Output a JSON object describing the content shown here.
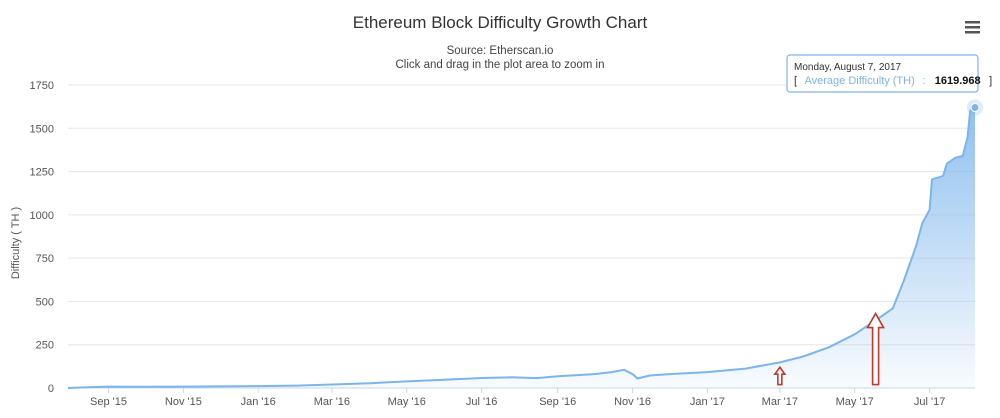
{
  "chart_data": {
    "type": "area",
    "title": "Ethereum Block Difficulty Growth Chart",
    "subtitle_lines": [
      "Source: Etherscan.io",
      "Click and drag in the plot area to zoom in"
    ],
    "ylabel": "Difficulty ( TH )",
    "xlabel": "",
    "ylim": [
      0,
      1750
    ],
    "xlim": [
      "2015-07-30",
      "2017-08-07"
    ],
    "grid": true,
    "legend": "none",
    "y_ticks": [
      "0",
      "250",
      "500",
      "750",
      "1000",
      "1250",
      "1500",
      "1750"
    ],
    "x_ticks": [
      {
        "date": "2015-09-01",
        "label": "Sep '15"
      },
      {
        "date": "2015-11-01",
        "label": "Nov '15"
      },
      {
        "date": "2016-01-01",
        "label": "Jan '16"
      },
      {
        "date": "2016-03-01",
        "label": "Mar '16"
      },
      {
        "date": "2016-05-01",
        "label": "May '16"
      },
      {
        "date": "2016-07-01",
        "label": "Jul '16"
      },
      {
        "date": "2016-09-01",
        "label": "Sep '16"
      },
      {
        "date": "2016-11-01",
        "label": "Nov '16"
      },
      {
        "date": "2017-01-01",
        "label": "Jan '17"
      },
      {
        "date": "2017-03-01",
        "label": "Mar '17"
      },
      {
        "date": "2017-05-01",
        "label": "May '17"
      },
      {
        "date": "2017-07-01",
        "label": "Jul '17"
      }
    ],
    "series": [
      {
        "name": "Average Difficulty (TH)",
        "color": "#7cb5ec",
        "points": [
          [
            "2015-07-30",
            0.1
          ],
          [
            "2015-08-15",
            4
          ],
          [
            "2015-09-01",
            8
          ],
          [
            "2015-10-01",
            7
          ],
          [
            "2015-11-01",
            8
          ],
          [
            "2015-12-01",
            9
          ],
          [
            "2016-01-01",
            11
          ],
          [
            "2016-02-01",
            14
          ],
          [
            "2016-03-01",
            20
          ],
          [
            "2016-04-01",
            28
          ],
          [
            "2016-05-01",
            38
          ],
          [
            "2016-06-01",
            48
          ],
          [
            "2016-07-01",
            58
          ],
          [
            "2016-07-25",
            62
          ],
          [
            "2016-08-15",
            57
          ],
          [
            "2016-09-01",
            68
          ],
          [
            "2016-10-01",
            80
          ],
          [
            "2016-10-15",
            92
          ],
          [
            "2016-10-25",
            105
          ],
          [
            "2016-11-01",
            80
          ],
          [
            "2016-11-05",
            55
          ],
          [
            "2016-11-15",
            72
          ],
          [
            "2016-12-01",
            80
          ],
          [
            "2017-01-01",
            92
          ],
          [
            "2017-02-01",
            112
          ],
          [
            "2017-03-01",
            148
          ],
          [
            "2017-03-20",
            182
          ],
          [
            "2017-04-10",
            235
          ],
          [
            "2017-05-01",
            310
          ],
          [
            "2017-05-20",
            400
          ],
          [
            "2017-06-01",
            460
          ],
          [
            "2017-06-10",
            620
          ],
          [
            "2017-06-20",
            820
          ],
          [
            "2017-06-25",
            950
          ],
          [
            "2017-07-01",
            1030
          ],
          [
            "2017-07-03",
            1205
          ],
          [
            "2017-07-12",
            1225
          ],
          [
            "2017-07-15",
            1295
          ],
          [
            "2017-07-22",
            1330
          ],
          [
            "2017-07-28",
            1340
          ],
          [
            "2017-08-01",
            1450
          ],
          [
            "2017-08-03",
            1600
          ],
          [
            "2017-08-07",
            1619.968
          ]
        ]
      }
    ],
    "annotations": [
      {
        "type": "arrow",
        "x": "2017-03-01",
        "y_tip": 120,
        "y_tail": 20,
        "size": "small",
        "color": "#c0392b"
      },
      {
        "type": "arrow",
        "x": "2017-05-18",
        "y_tip": 430,
        "y_tail": 20,
        "size": "large",
        "color": "#c0392b"
      }
    ],
    "tooltip": {
      "date": "Monday, August 7, 2017",
      "series_label": "Average Difficulty (TH)",
      "open_bracket": "[",
      "separator": ":",
      "value": "1619.968",
      "close_bracket": "]"
    }
  },
  "ui": {
    "menu_icon": "hamburger-menu-icon"
  }
}
